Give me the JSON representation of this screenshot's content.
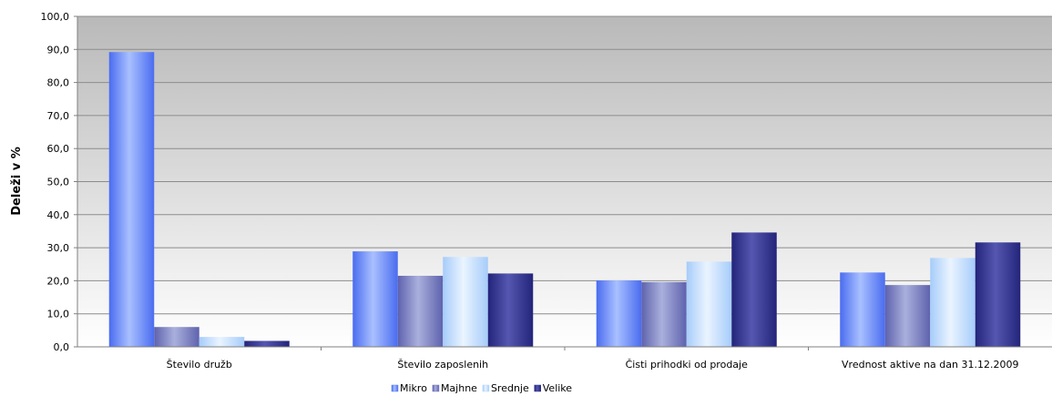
{
  "chart_data": {
    "type": "bar",
    "title": "",
    "xlabel": "",
    "ylabel": "Deleži v %",
    "ylim": [
      0,
      100
    ],
    "yticks": [
      "0,0",
      "10,0",
      "20,0",
      "30,0",
      "40,0",
      "50,0",
      "60,0",
      "70,0",
      "80,0",
      "90,0",
      "100,0"
    ],
    "grid": true,
    "legend_position": "bottom",
    "categories": [
      "Število družb",
      "Število zaposlenih",
      "Čisti prihodki od prodaje",
      "Vrednost aktive na dan 31.12.2009"
    ],
    "series": [
      {
        "name": "Mikro",
        "values": [
          89.2,
          28.9,
          20.1,
          22.5
        ],
        "color": "#5a7cf0"
      },
      {
        "name": "Majhne",
        "values": [
          6.0,
          21.5,
          19.6,
          18.7
        ],
        "color": "#6f72b8"
      },
      {
        "name": "Srednje",
        "values": [
          3.0,
          27.2,
          25.8,
          26.9
        ],
        "color": "#b8d6fb"
      },
      {
        "name": "Velike",
        "values": [
          1.8,
          22.2,
          34.6,
          31.6
        ],
        "color": "#2e2f8a"
      }
    ]
  }
}
